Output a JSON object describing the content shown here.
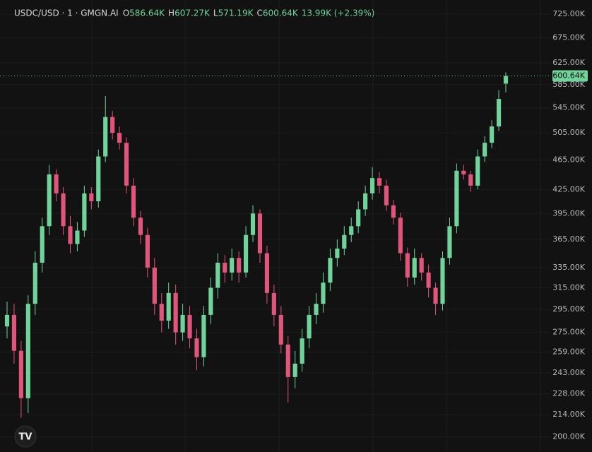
{
  "chart_data": {
    "type": "candlestick",
    "symbol": "USDC/USD · 1 · GMGN.AI",
    "legend": [
      {
        "label": "O",
        "value": "586.64K"
      },
      {
        "label": "H",
        "value": "607.27K"
      },
      {
        "label": "L",
        "value": "571.19K"
      },
      {
        "label": "C",
        "value": "600.64K"
      }
    ],
    "change": "13.99K (+2.39%)",
    "log_scale": true,
    "grid": true,
    "up_color": "#6fd39a",
    "down_color": "#e0557a",
    "ylim": [
      191,
      757
    ],
    "yticks": [
      {
        "value": 725,
        "label": "725.00K"
      },
      {
        "value": 675,
        "label": "675.00K"
      },
      {
        "value": 625,
        "label": "625.00K"
      },
      {
        "value": 585,
        "label": "585.00K"
      },
      {
        "value": 545,
        "label": "545.00K"
      },
      {
        "value": 505,
        "label": "505.00K"
      },
      {
        "value": 465,
        "label": "465.00K"
      },
      {
        "value": 425,
        "label": "425.00K"
      },
      {
        "value": 395,
        "label": "395.00K"
      },
      {
        "value": 365,
        "label": "365.00K"
      },
      {
        "value": 335,
        "label": "335.00K"
      },
      {
        "value": 315,
        "label": "315.00K"
      },
      {
        "value": 295,
        "label": "295.00K"
      },
      {
        "value": 275,
        "label": "275.00K"
      },
      {
        "value": 259,
        "label": "259.00K"
      },
      {
        "value": 243,
        "label": "243.00K"
      },
      {
        "value": 228,
        "label": "228.00K"
      },
      {
        "value": 214,
        "label": "214.00K"
      },
      {
        "value": 200,
        "label": "200.00K"
      }
    ],
    "last_price": {
      "value": 600.64,
      "label": "600.64K"
    },
    "open": [
      280,
      290,
      260,
      225,
      300,
      340,
      380,
      445,
      420,
      380,
      360,
      375,
      420,
      410,
      470,
      530,
      505,
      490,
      430,
      390,
      370,
      335,
      300,
      285,
      310,
      275,
      290,
      270,
      255,
      290,
      315,
      340,
      330,
      345,
      330,
      370,
      395,
      350,
      310,
      290,
      265,
      240,
      250,
      270,
      290,
      300,
      320,
      345,
      355,
      370,
      380,
      400,
      420,
      440,
      430,
      405,
      390,
      350,
      325,
      345,
      330,
      315,
      300,
      345,
      380,
      450,
      445,
      430,
      470,
      490,
      515,
      586.64
    ],
    "high": [
      302,
      300,
      268,
      308,
      352,
      390,
      458,
      452,
      428,
      392,
      385,
      430,
      428,
      480,
      565,
      540,
      515,
      498,
      440,
      398,
      378,
      345,
      310,
      320,
      318,
      300,
      298,
      278,
      298,
      325,
      350,
      348,
      355,
      352,
      380,
      405,
      400,
      358,
      318,
      298,
      272,
      260,
      278,
      298,
      310,
      330,
      355,
      365,
      380,
      390,
      410,
      430,
      455,
      448,
      438,
      412,
      396,
      356,
      355,
      350,
      338,
      320,
      352,
      390,
      460,
      458,
      450,
      480,
      500,
      525,
      575,
      607.27
    ],
    "low": [
      270,
      250,
      212,
      215,
      290,
      330,
      370,
      410,
      370,
      350,
      352,
      368,
      400,
      402,
      462,
      495,
      480,
      420,
      380,
      360,
      325,
      290,
      275,
      278,
      265,
      268,
      262,
      245,
      248,
      282,
      305,
      320,
      322,
      320,
      325,
      362,
      340,
      300,
      280,
      258,
      222,
      232,
      244,
      262,
      282,
      292,
      312,
      336,
      348,
      362,
      372,
      392,
      412,
      420,
      398,
      382,
      342,
      316,
      318,
      322,
      306,
      290,
      294,
      338,
      372,
      438,
      422,
      425,
      462,
      482,
      508,
      571.19
    ],
    "close": [
      290,
      260,
      225,
      300,
      340,
      380,
      445,
      420,
      380,
      360,
      375,
      420,
      410,
      470,
      530,
      505,
      490,
      430,
      390,
      370,
      335,
      300,
      285,
      310,
      275,
      290,
      270,
      255,
      290,
      315,
      340,
      330,
      345,
      330,
      370,
      395,
      350,
      310,
      290,
      265,
      240,
      250,
      270,
      290,
      300,
      320,
      345,
      355,
      370,
      380,
      400,
      420,
      440,
      430,
      405,
      390,
      350,
      325,
      345,
      330,
      315,
      300,
      345,
      380,
      450,
      445,
      430,
      470,
      490,
      515,
      560,
      600.64
    ]
  }
}
